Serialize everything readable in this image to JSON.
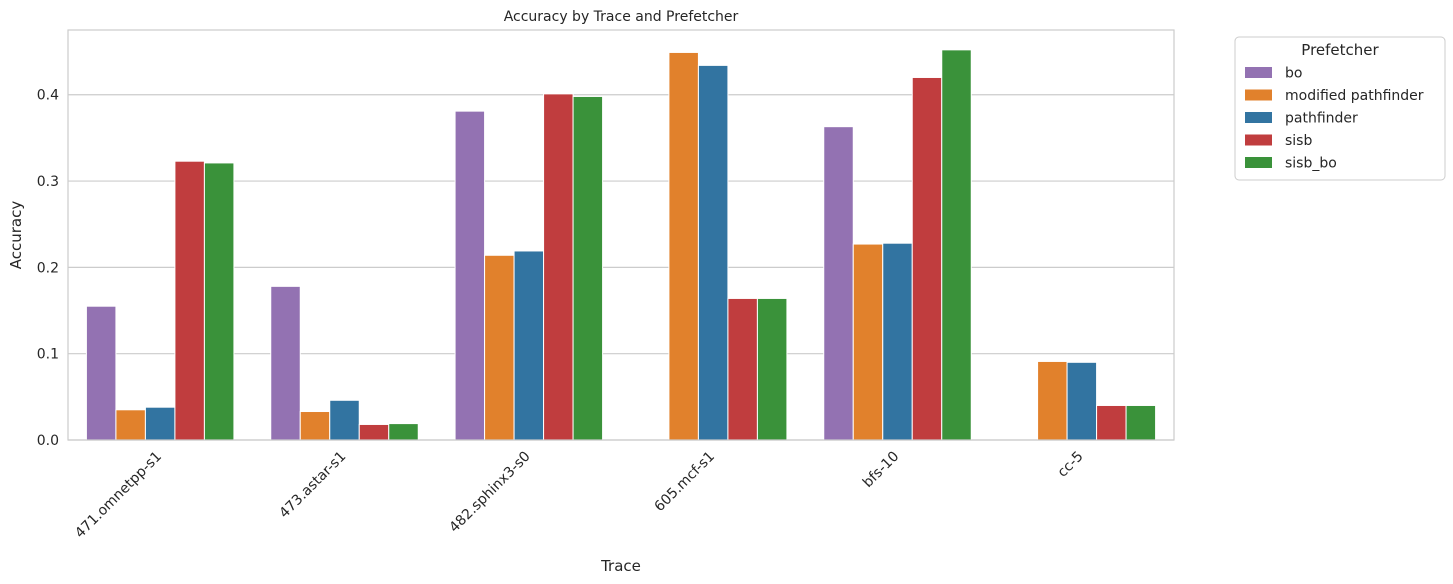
{
  "chart_data": {
    "type": "bar",
    "title": "Accuracy by Trace and Prefetcher",
    "xlabel": "Trace",
    "ylabel": "Accuracy",
    "categories": [
      "471.omnetpp-s1",
      "473.astar-s1",
      "482.sphinx3-s0",
      "605.mcf-s1",
      "bfs-10",
      "cc-5"
    ],
    "ylim": [
      0,
      0.475
    ],
    "yticks": [
      "0.0",
      "0.1",
      "0.2",
      "0.3",
      "0.4"
    ],
    "grid": true,
    "legend_title": "Prefetcher",
    "legend_position": "outside-right",
    "series": [
      {
        "name": "bo",
        "color": "#9372b2",
        "values": [
          0.155,
          0.178,
          0.381,
          0,
          0.363,
          0
        ]
      },
      {
        "name": "modified pathfinder",
        "color": "#e1812c",
        "values": [
          0.035,
          0.033,
          0.214,
          0.449,
          0.227,
          0.091
        ]
      },
      {
        "name": "pathfinder",
        "color": "#3274a1",
        "values": [
          0.038,
          0.046,
          0.219,
          0.434,
          0.228,
          0.09
        ]
      },
      {
        "name": "sisb",
        "color": "#c03d3e",
        "values": [
          0.323,
          0.018,
          0.401,
          0.164,
          0.42,
          0.04
        ]
      },
      {
        "name": "sisb_bo",
        "color": "#3a923a",
        "values": [
          0.321,
          0.019,
          0.398,
          0.164,
          0.452,
          0.04
        ]
      }
    ]
  }
}
